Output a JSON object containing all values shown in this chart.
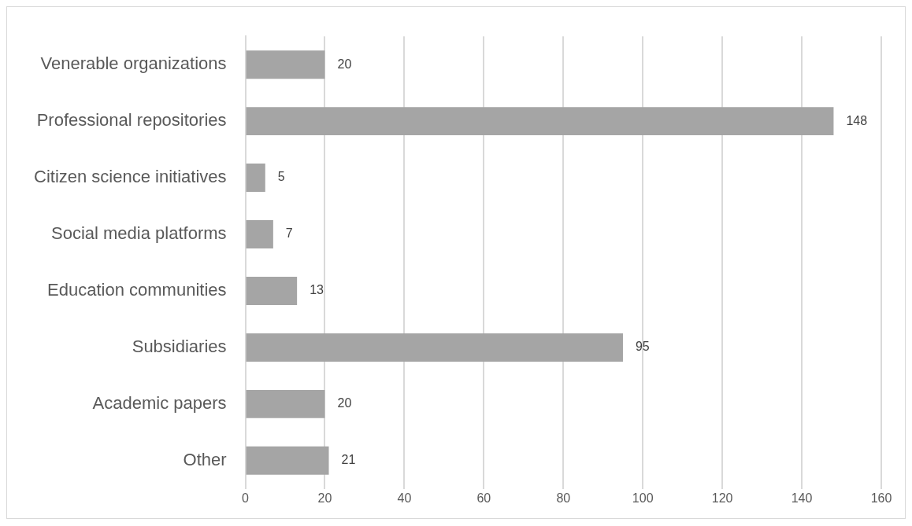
{
  "chart_data": {
    "type": "bar",
    "orientation": "horizontal",
    "categories": [
      "Venerable organizations",
      "Professional repositories",
      "Citizen science initiatives",
      "Social media platforms",
      "Education communities",
      "Subsidiaries",
      "Academic papers",
      "Other"
    ],
    "values": [
      20,
      148,
      5,
      7,
      13,
      95,
      20,
      21
    ],
    "color": "#a5a5a5",
    "xlim": [
      0,
      160
    ],
    "xticks": [
      0,
      20,
      40,
      60,
      80,
      100,
      120,
      140,
      160
    ],
    "grid": "x",
    "data_labels": true,
    "legend": false
  }
}
